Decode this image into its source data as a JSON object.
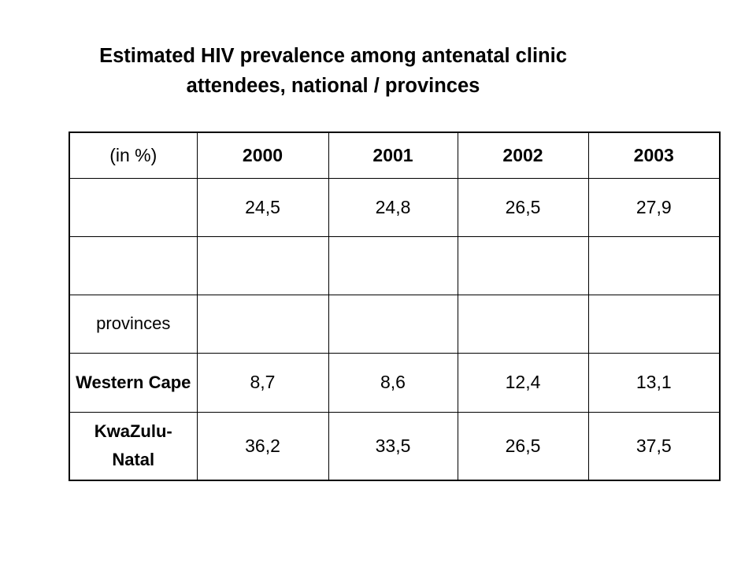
{
  "title": {
    "line1": "Estimated HIV prevalence among antenatal clinic",
    "line2": "attendees, national / provinces"
  },
  "table": {
    "corner_label": "(in %)",
    "columns": [
      "2000",
      "2001",
      "2002",
      "2003"
    ],
    "rows": [
      {
        "label": "",
        "values": [
          "24,5",
          "24,8",
          "26,5",
          "27,9"
        ]
      },
      {
        "label": "",
        "values": [
          "",
          "",
          "",
          ""
        ]
      },
      {
        "label": "provinces",
        "values": [
          "",
          "",
          "",
          ""
        ]
      },
      {
        "label": "Western Cape",
        "values": [
          "8,7",
          "8,6",
          "12,4",
          "13,1"
        ]
      },
      {
        "label": "KwaZulu-Natal",
        "values": [
          "36,2",
          "33,5",
          "26,5",
          "37,5"
        ]
      }
    ]
  }
}
